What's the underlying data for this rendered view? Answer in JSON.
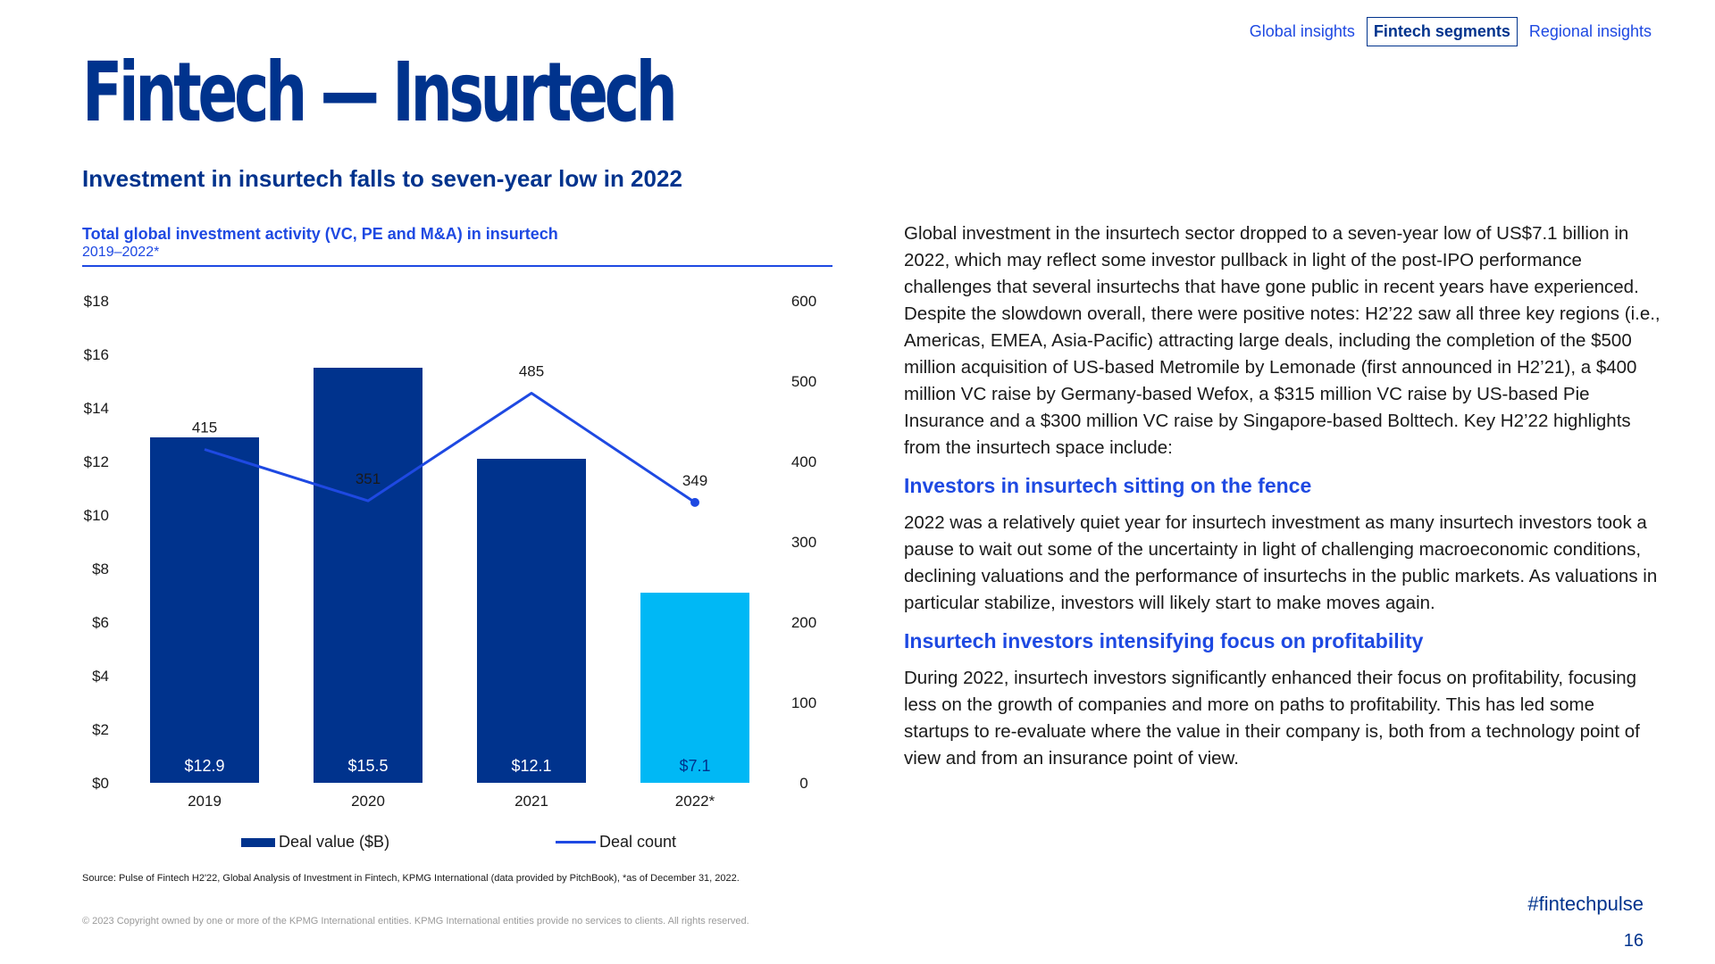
{
  "nav": {
    "items": [
      {
        "label": "Global insights",
        "active": false
      },
      {
        "label": "Fintech segments",
        "active": true
      },
      {
        "label": "Regional insights",
        "active": false
      }
    ]
  },
  "page_title": "Fintech — Insurtech",
  "section_heading": "Investment in insurtech falls to seven-year low in 2022",
  "chart_data": {
    "type": "bar",
    "title": "Total global investment activity (VC, PE and M&A) in insurtech",
    "subtitle": "2019–2022*",
    "categories": [
      "2019",
      "2020",
      "2021",
      "2022*"
    ],
    "series": [
      {
        "name": "Deal value ($B)",
        "type": "bar",
        "axis": "left",
        "values": [
          12.9,
          15.5,
          12.1,
          7.1
        ],
        "labels": [
          "$12.9",
          "$15.5",
          "$12.1",
          "$7.1"
        ]
      },
      {
        "name": "Deal count",
        "type": "line",
        "axis": "right",
        "values": [
          415,
          351,
          485,
          349
        ],
        "labels": [
          "415",
          "351",
          "485",
          "349"
        ]
      }
    ],
    "bar_colors": [
      "#00338d",
      "#00338d",
      "#00338d",
      "#00b8f5"
    ],
    "bar_label_colors": [
      "#ffffff",
      "#ffffff",
      "#ffffff",
      "#00338d"
    ],
    "line_color": "#1e49e2",
    "y_left": {
      "min": 0,
      "max": 18,
      "ticks": [
        "$0",
        "$2",
        "$4",
        "$6",
        "$8",
        "$10",
        "$12",
        "$14",
        "$16",
        "$18"
      ]
    },
    "y_right": {
      "min": 0,
      "max": 600,
      "ticks": [
        "0",
        "100",
        "200",
        "300",
        "400",
        "500",
        "600"
      ]
    },
    "legend": {
      "position": "bottom",
      "items": [
        "Deal value ($B)",
        "Deal count"
      ]
    },
    "grid": false
  },
  "source": "Source: Pulse of Fintech H2'22, Global Analysis of Investment in Fintech, KPMG International (data provided by PitchBook), *as of December 31, 2022.",
  "copyright": "© 2023 Copyright owned by one or more of the KPMG International entities. KPMG International entities provide no services to clients. All rights reserved.",
  "body": {
    "intro": "Global investment in the insurtech sector dropped to a seven-year low of US$7.1 billion in 2022, which may reflect some investor pullback in light of the post-IPO performance challenges that several insurtechs that have gone public in recent years have experienced. Despite the slowdown overall, there were positive notes: H2’22 saw all three key regions (i.e., Americas, EMEA, Asia-Pacific) attracting large deals, including the completion of the $500 million acquisition of US-based Metromile by Lemonade (first announced in H2’21), a $400 million VC raise by Germany-based Wefox, a $315 million VC raise by US-based Pie Insurance and a $300 million VC raise by Singapore-based Bolttech. Key H2’22 highlights from the insurtech space include:",
    "heading1": "Investors in insurtech sitting on the fence",
    "para1": "2022 was a relatively quiet year for insurtech investment as many insurtech investors took a pause to wait out some of the uncertainty in light of challenging macroeconomic conditions, declining valuations and the performance of insurtechs in the public markets. As valuations in particular stabilize, investors will likely start to make moves again.",
    "heading2": "Insurtech investors intensifying focus on profitability",
    "para2": "During 2022, insurtech investors significantly enhanced their focus on profitability, focusing less on the growth of companies and more on paths to profitability. This has led some startups to re-evaluate where the value in their company is, both from a technology point of view and from an insurance point of view."
  },
  "hashtag": "#fintechpulse",
  "page_number": "16"
}
